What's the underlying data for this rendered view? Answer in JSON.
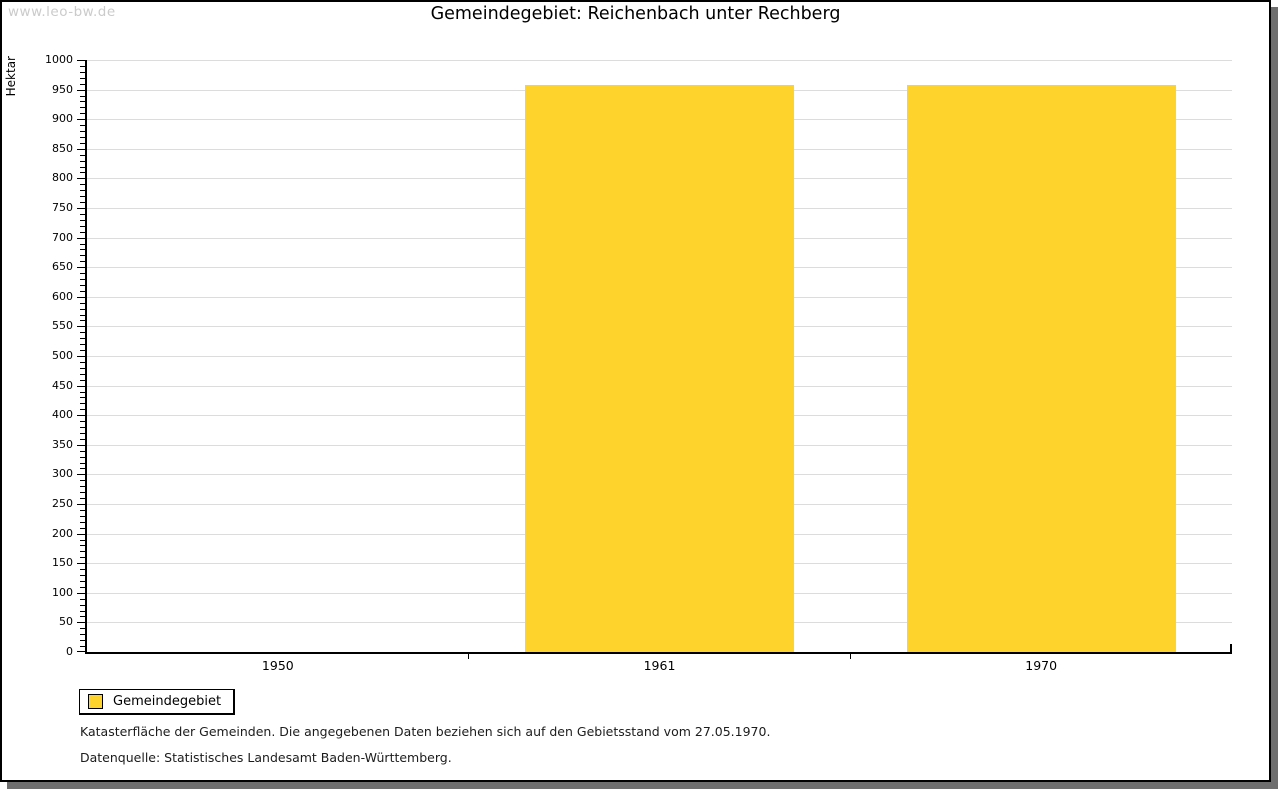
{
  "watermark": "www.leo-bw.de",
  "chart_data": {
    "type": "bar",
    "title": "Gemeindegebiet: Reichenbach unter Rechberg",
    "ylabel": "Hektar",
    "xlabel": "",
    "categories": [
      "1950",
      "1961",
      "1970"
    ],
    "series": [
      {
        "name": "Gemeindegebiet",
        "values": [
          null,
          958,
          958
        ]
      }
    ],
    "ylim": [
      0,
      1000
    ],
    "ytick_step": 50,
    "minor_tick_step": 10,
    "grid": true,
    "grid_color": "#dcdcdc",
    "axis_color": "#000000",
    "bar_color": "#fdd32c",
    "legend_position": "bottom-left"
  },
  "legend": {
    "label": "Gemeindegebiet",
    "swatch_color": "#fdd32c"
  },
  "footnotes": [
    "Katasterfläche der Gemeinden. Die angegebenen Daten beziehen sich auf den Gebietsstand vom 27.05.1970.",
    "Datenquelle: Statistisches Landesamt Baden-Württemberg."
  ]
}
